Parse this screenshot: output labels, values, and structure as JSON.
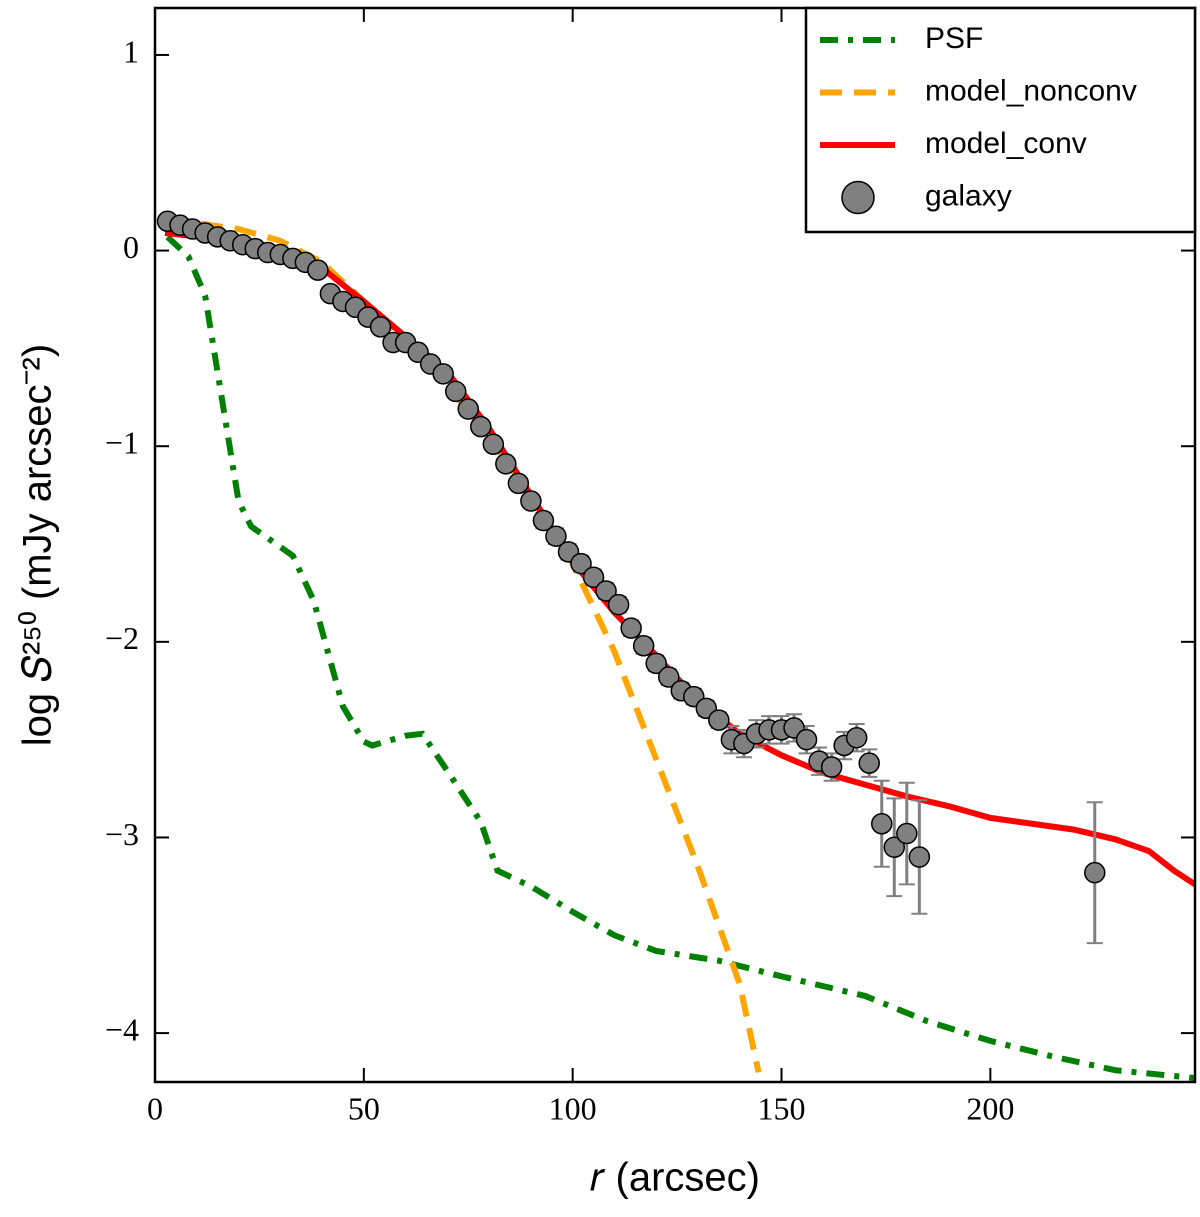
{
  "chart_data": {
    "type": "line",
    "xlabel": "𝑟 (arcsec)",
    "ylabel": "log 𝑆²⁵⁰ (mJy arcsec⁻²)",
    "xlim": [
      0,
      249
    ],
    "ylim": [
      -4.25,
      1.24
    ],
    "xticks": [
      0,
      50,
      100,
      150,
      200
    ],
    "yticks": [
      {
        "value": -4,
        "label": "−4"
      },
      {
        "value": -3,
        "label": "−3"
      },
      {
        "value": -2,
        "label": "−2"
      },
      {
        "value": -1,
        "label": "−1"
      },
      0,
      1
    ],
    "legend": "upper right",
    "series": [
      {
        "name": "PSF",
        "color": "#008000",
        "style": "dashdot",
        "x": [
          3,
          8,
          12,
          20,
          23,
          33,
          38,
          45,
          50,
          52,
          60,
          64,
          70,
          78,
          82,
          90,
          100,
          110,
          120,
          135,
          150,
          170,
          185,
          200,
          215,
          230,
          249
        ],
        "values": [
          0.07,
          -0.03,
          -0.23,
          -1.28,
          -1.41,
          -1.56,
          -1.79,
          -2.33,
          -2.51,
          -2.53,
          -2.48,
          -2.47,
          -2.66,
          -2.92,
          -3.17,
          -3.25,
          -3.38,
          -3.5,
          -3.58,
          -3.63,
          -3.71,
          -3.81,
          -3.94,
          -4.04,
          -4.12,
          -4.19,
          -4.23
        ]
      },
      {
        "name": "model_nonconv",
        "color": "#ffa500",
        "style": "dashed",
        "x": [
          3,
          10,
          20,
          30,
          40,
          50,
          60,
          70,
          80,
          90,
          100,
          110,
          120,
          130,
          140,
          144.5
        ],
        "values": [
          0.17,
          0.14,
          0.11,
          0.05,
          -0.06,
          -0.26,
          -0.46,
          -0.69,
          -0.95,
          -1.26,
          -1.6,
          -2.05,
          -2.6,
          -3.15,
          -3.75,
          -4.2
        ]
      },
      {
        "name": "model_conv",
        "color": "#ff0000",
        "style": "solid",
        "x": [
          2.4,
          20,
          40,
          50,
          60,
          70,
          80,
          90,
          100,
          110,
          120,
          130,
          140,
          150,
          160,
          170,
          180,
          190,
          200,
          210,
          220,
          230,
          238,
          244,
          249
        ],
        "values": [
          0.09,
          0.05,
          -0.09,
          -0.26,
          -0.44,
          -0.62,
          -0.91,
          -1.25,
          -1.59,
          -1.85,
          -2.07,
          -2.3,
          -2.47,
          -2.58,
          -2.67,
          -2.73,
          -2.79,
          -2.84,
          -2.9,
          -2.93,
          -2.96,
          -3.01,
          -3.07,
          -3.17,
          -3.24
        ]
      },
      {
        "name": "galaxy",
        "color": "#808080",
        "style": "points",
        "x": [
          3,
          6,
          9,
          12,
          15,
          18,
          21,
          24,
          27,
          30,
          33,
          36,
          39,
          42,
          45,
          48,
          51,
          54,
          57,
          60,
          63,
          66,
          69,
          72,
          75,
          78,
          81,
          84,
          87,
          90,
          93,
          96,
          99,
          102,
          105,
          108,
          111,
          114,
          117,
          120,
          123,
          126,
          129,
          132,
          135,
          138,
          141,
          144,
          147,
          150,
          153,
          156,
          159,
          162,
          165,
          168,
          171,
          174,
          177,
          180,
          183,
          225
        ],
        "values": [
          0.15,
          0.13,
          0.11,
          0.09,
          0.07,
          0.05,
          0.03,
          0.01,
          -0.01,
          -0.02,
          -0.04,
          -0.06,
          -0.1,
          -0.22,
          -0.26,
          -0.29,
          -0.34,
          -0.39,
          -0.47,
          -0.47,
          -0.52,
          -0.58,
          -0.63,
          -0.72,
          -0.81,
          -0.9,
          -0.99,
          -1.09,
          -1.19,
          -1.28,
          -1.38,
          -1.46,
          -1.54,
          -1.6,
          -1.67,
          -1.74,
          -1.81,
          -1.93,
          -2.02,
          -2.11,
          -2.18,
          -2.25,
          -2.28,
          -2.34,
          -2.4,
          -2.5,
          -2.52,
          -2.47,
          -2.45,
          -2.45,
          -2.44,
          -2.5,
          -2.61,
          -2.64,
          -2.53,
          -2.49,
          -2.62,
          -2.93,
          -3.05,
          -2.98,
          -3.1,
          -3.18
        ],
        "errors": [
          0.02,
          0.02,
          0.02,
          0.02,
          0.02,
          0.02,
          0.02,
          0.02,
          0.02,
          0.02,
          0.02,
          0.02,
          0.02,
          0.02,
          0.02,
          0.02,
          0.02,
          0.02,
          0.02,
          0.02,
          0.02,
          0.02,
          0.02,
          0.02,
          0.02,
          0.02,
          0.02,
          0.02,
          0.02,
          0.02,
          0.04,
          0.04,
          0.04,
          0.04,
          0.04,
          0.04,
          0.04,
          0.04,
          0.04,
          0.04,
          0.04,
          0.04,
          0.04,
          0.04,
          0.04,
          0.07,
          0.07,
          0.07,
          0.07,
          0.07,
          0.07,
          0.07,
          0.07,
          0.07,
          0.07,
          0.07,
          0.07,
          0.22,
          0.25,
          0.26,
          0.29,
          0.36
        ]
      }
    ]
  }
}
